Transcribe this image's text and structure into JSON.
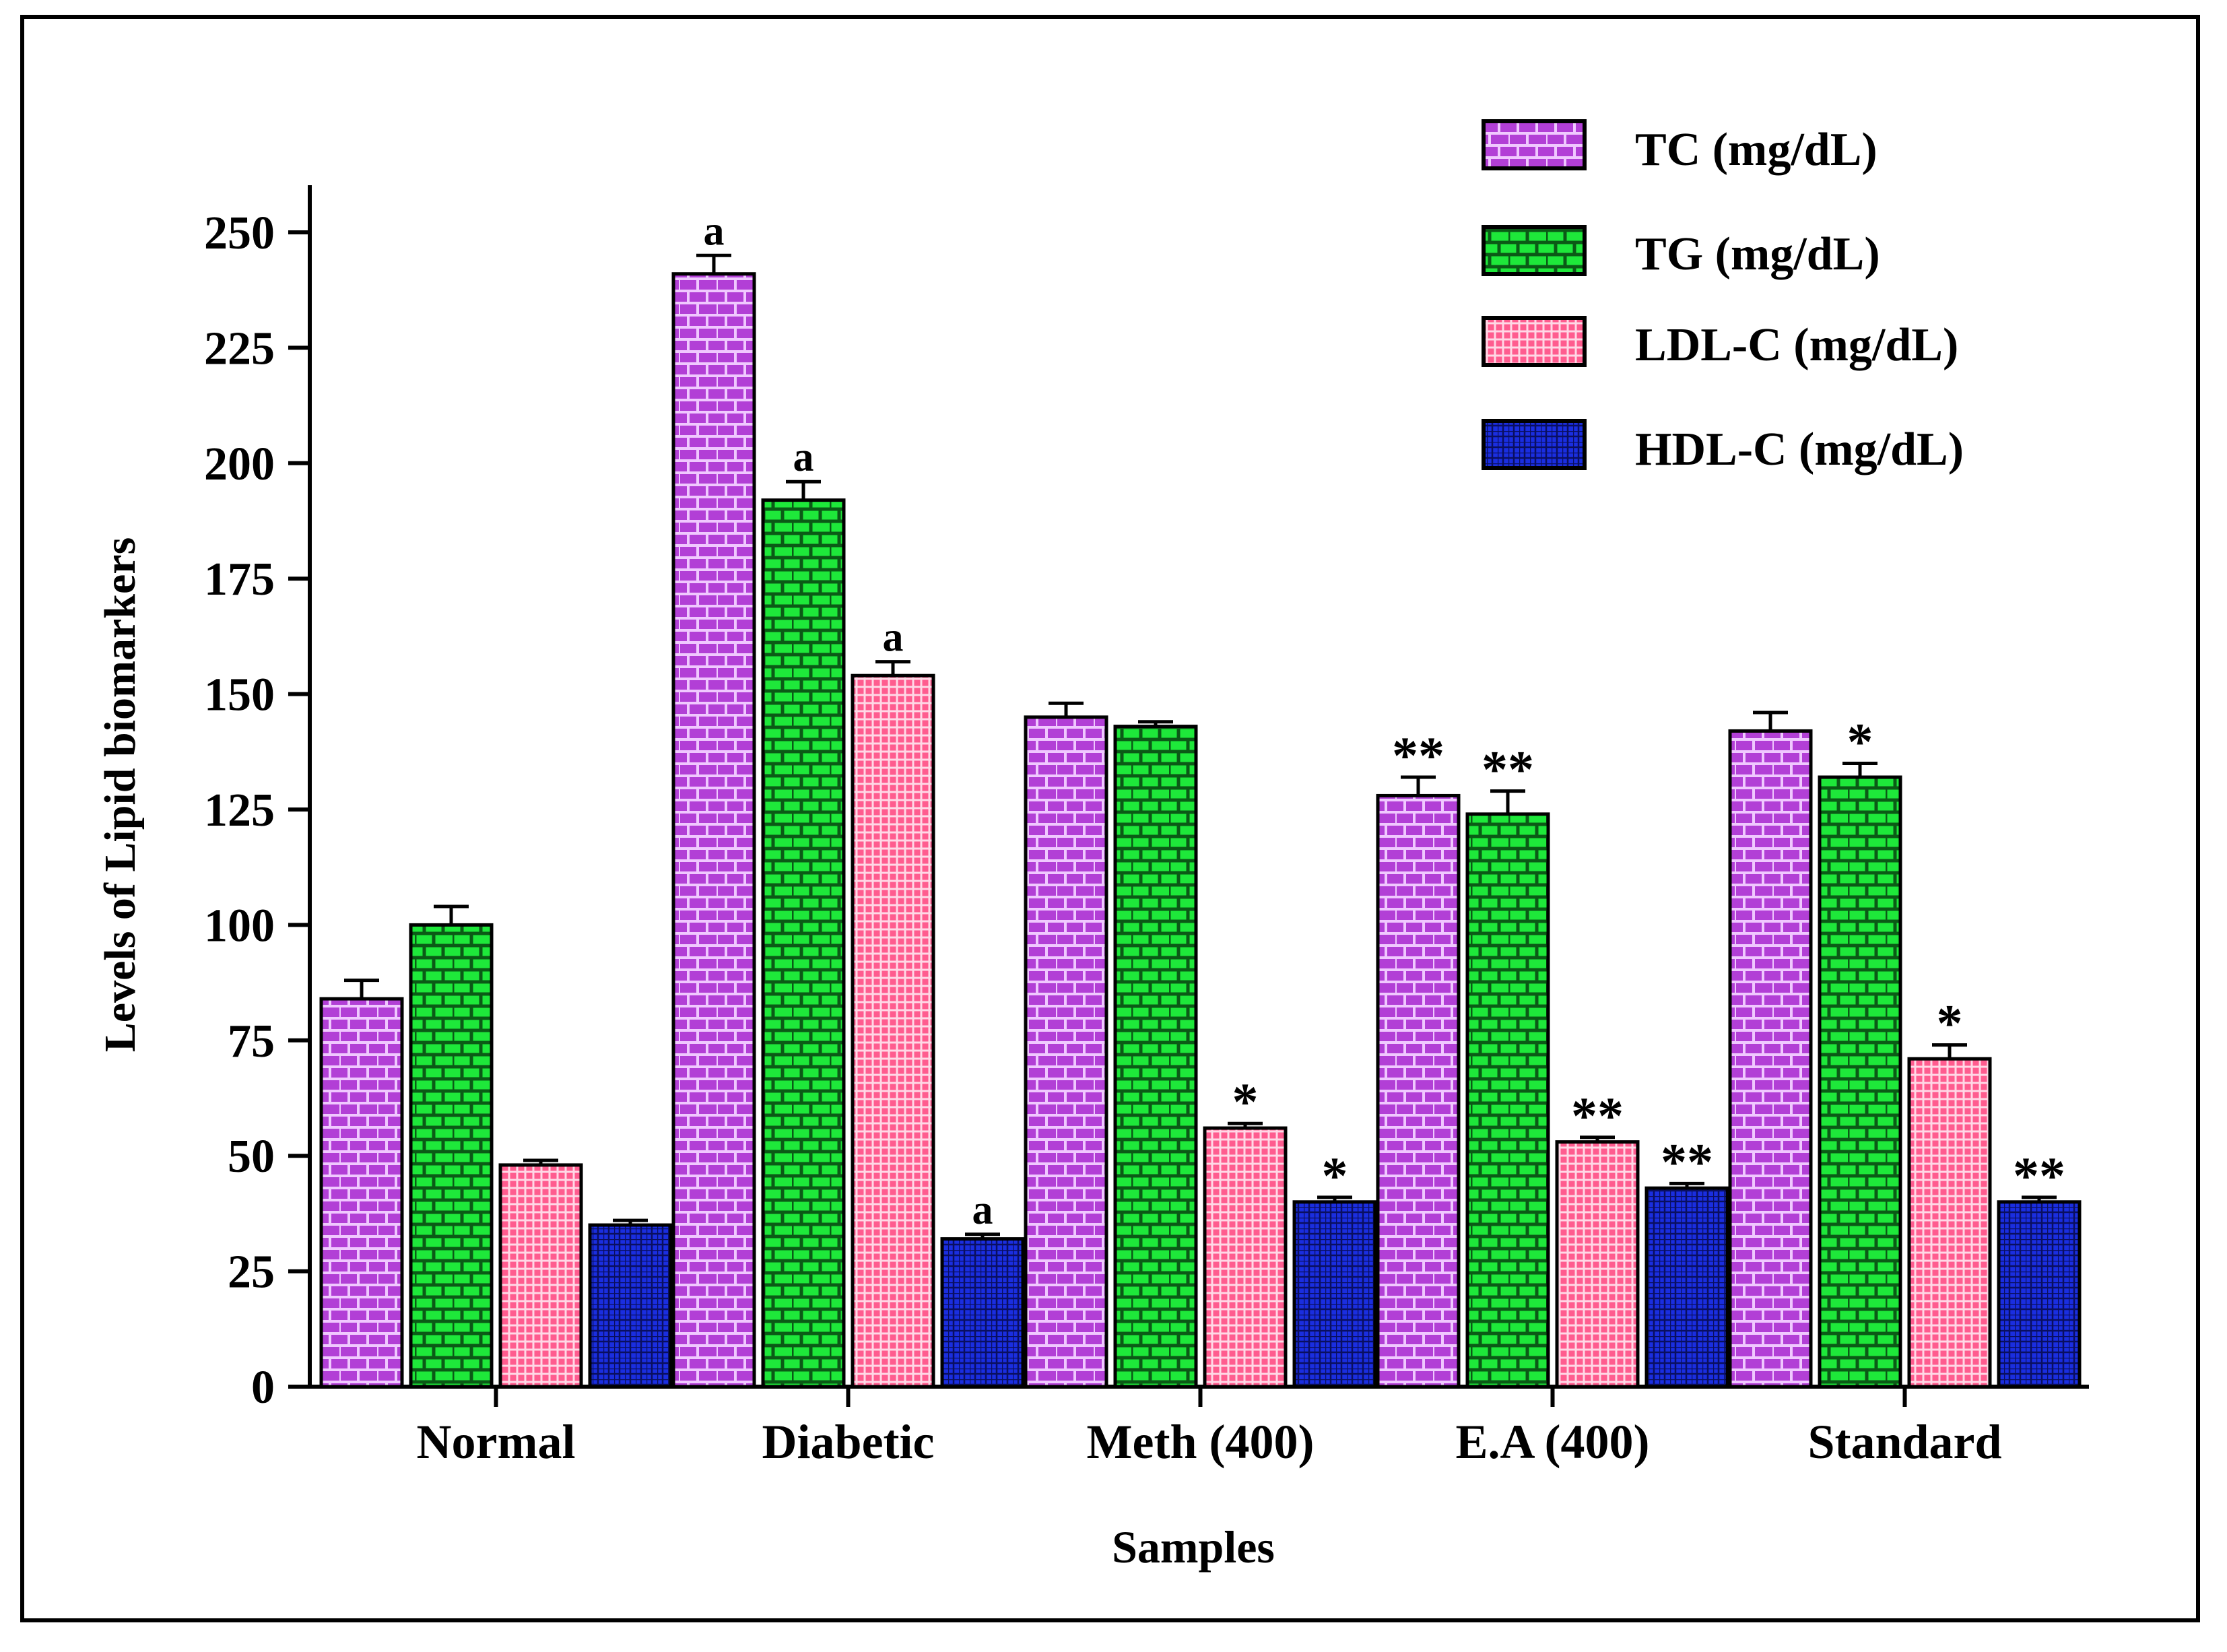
{
  "chart_data": {
    "type": "bar",
    "title": "",
    "xlabel": "Samples",
    "ylabel": "Levels of Lipid biomarkers",
    "ylim": [
      0,
      260
    ],
    "yticks": [
      0,
      25,
      50,
      75,
      100,
      125,
      150,
      175,
      200,
      225,
      250
    ],
    "ytick_labels": [
      "0",
      "25",
      "50",
      "75",
      "100",
      "125",
      "150",
      "175",
      "200",
      "225",
      "250"
    ],
    "legend_position": "top-right",
    "categories": [
      "Normal",
      "Diabetic",
      "Meth (400)",
      "E.A (400)",
      "Standard"
    ],
    "series": [
      {
        "name": "TC (mg/dL)",
        "color": "#b23fd6",
        "values": [
          84,
          241,
          145,
          128,
          142
        ],
        "errors": [
          4,
          4,
          3,
          4,
          4
        ],
        "annotations": [
          "",
          "a",
          "",
          "**",
          ""
        ]
      },
      {
        "name": "TG (mg/dL)",
        "color": "#1ee83a",
        "values": [
          100,
          192,
          143,
          124,
          132
        ],
        "errors": [
          4,
          4,
          1,
          5,
          3
        ],
        "annotations": [
          "",
          "a",
          "",
          "**",
          "*"
        ]
      },
      {
        "name": "LDL-C (mg/dL)",
        "color": "#ff5c8f",
        "values": [
          48,
          154,
          56,
          53,
          71
        ],
        "errors": [
          1,
          3,
          1,
          1,
          3
        ],
        "annotations": [
          "",
          "a",
          "*",
          "**",
          "*"
        ]
      },
      {
        "name": "HDL-C (mg/dL)",
        "color": "#1a2ee0",
        "values": [
          35,
          32,
          40,
          43,
          40
        ],
        "errors": [
          1,
          1,
          1,
          1,
          1
        ],
        "annotations": [
          "",
          "a",
          "*",
          "**",
          "**"
        ]
      }
    ]
  }
}
